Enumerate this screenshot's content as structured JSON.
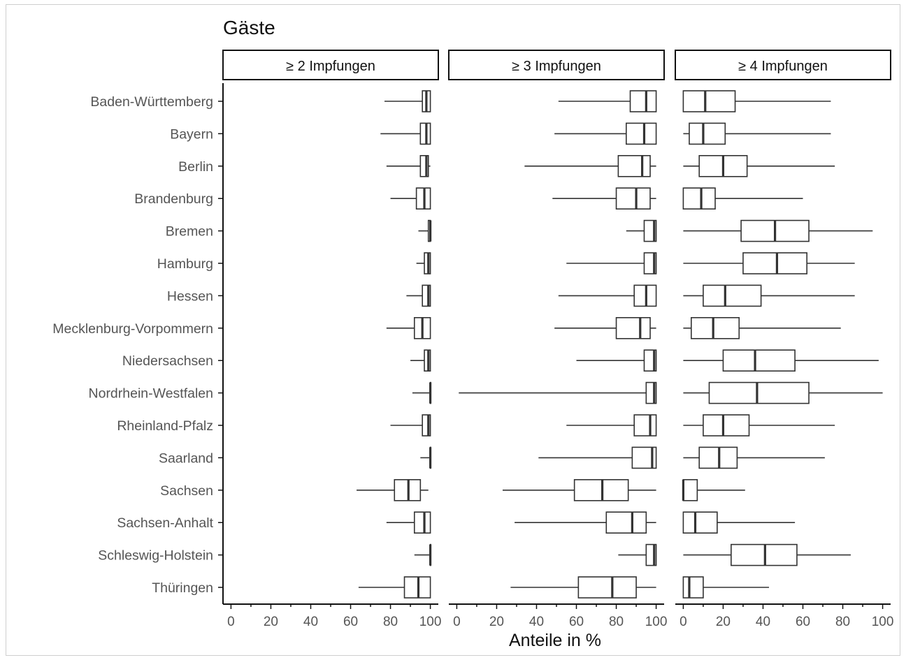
{
  "chart_data": {
    "type": "boxplot",
    "title": "Gäste",
    "xlabel": "Anteile in %",
    "xlim": [
      -4,
      104
    ],
    "xticks": [
      0,
      20,
      40,
      60,
      80,
      100
    ],
    "categories": [
      "Baden-Württemberg",
      "Bayern",
      "Berlin",
      "Brandenburg",
      "Bremen",
      "Hamburg",
      "Hessen",
      "Mecklenburg-Vorpommern",
      "Niedersachsen",
      "Nordrhein-Westfalen",
      "Rheinland-Pfalz",
      "Saarland",
      "Sachsen",
      "Sachsen-Anhalt",
      "Schleswig-Holstein",
      "Thüringen"
    ],
    "panels": [
      {
        "label": "≥ 2 Impfungen",
        "boxes": [
          {
            "min": 77,
            "q1": 96,
            "median": 98,
            "q3": 100,
            "max": 100
          },
          {
            "min": 75,
            "q1": 95,
            "median": 98,
            "q3": 100,
            "max": 100
          },
          {
            "min": 78,
            "q1": 95,
            "median": 98,
            "q3": 99,
            "max": 100
          },
          {
            "min": 80,
            "q1": 93,
            "median": 97,
            "q3": 100,
            "max": 100
          },
          {
            "min": 94,
            "q1": 99,
            "median": 100,
            "q3": 100,
            "max": 100
          },
          {
            "min": 93,
            "q1": 97,
            "median": 99,
            "q3": 100,
            "max": 100
          },
          {
            "min": 88,
            "q1": 96,
            "median": 99,
            "q3": 100,
            "max": 100
          },
          {
            "min": 78,
            "q1": 92,
            "median": 96,
            "q3": 100,
            "max": 100
          },
          {
            "min": 90,
            "q1": 97,
            "median": 99,
            "q3": 100,
            "max": 100
          },
          {
            "min": 91,
            "q1": 100,
            "median": 100,
            "q3": 100,
            "max": 100
          },
          {
            "min": 80,
            "q1": 96,
            "median": 99,
            "q3": 100,
            "max": 100
          },
          {
            "min": 95,
            "q1": 100,
            "median": 100,
            "q3": 100,
            "max": 100
          },
          {
            "min": 63,
            "q1": 82,
            "median": 89,
            "q3": 95,
            "max": 99
          },
          {
            "min": 78,
            "q1": 92,
            "median": 97,
            "q3": 100,
            "max": 100
          },
          {
            "min": 92,
            "q1": 100,
            "median": 100,
            "q3": 100,
            "max": 100
          },
          {
            "min": 64,
            "q1": 87,
            "median": 94,
            "q3": 100,
            "max": 100
          }
        ]
      },
      {
        "label": "≥ 3 Impfungen",
        "boxes": [
          {
            "min": 51,
            "q1": 87,
            "median": 95,
            "q3": 100,
            "max": 100
          },
          {
            "min": 49,
            "q1": 85,
            "median": 94,
            "q3": 100,
            "max": 100
          },
          {
            "min": 34,
            "q1": 81,
            "median": 93,
            "q3": 97,
            "max": 100
          },
          {
            "min": 48,
            "q1": 80,
            "median": 90,
            "q3": 97,
            "max": 100
          },
          {
            "min": 85,
            "q1": 94,
            "median": 99,
            "q3": 100,
            "max": 100
          },
          {
            "min": 55,
            "q1": 94,
            "median": 99,
            "q3": 100,
            "max": 100
          },
          {
            "min": 51,
            "q1": 89,
            "median": 95,
            "q3": 100,
            "max": 100
          },
          {
            "min": 49,
            "q1": 80,
            "median": 92,
            "q3": 97,
            "max": 100
          },
          {
            "min": 60,
            "q1": 94,
            "median": 99,
            "q3": 100,
            "max": 100
          },
          {
            "min": 1,
            "q1": 95,
            "median": 99,
            "q3": 100,
            "max": 100
          },
          {
            "min": 55,
            "q1": 89,
            "median": 97,
            "q3": 100,
            "max": 100
          },
          {
            "min": 41,
            "q1": 88,
            "median": 98,
            "q3": 100,
            "max": 100
          },
          {
            "min": 23,
            "q1": 59,
            "median": 73,
            "q3": 86,
            "max": 100
          },
          {
            "min": 29,
            "q1": 75,
            "median": 88,
            "q3": 95,
            "max": 100
          },
          {
            "min": 81,
            "q1": 95,
            "median": 99,
            "q3": 100,
            "max": 100
          },
          {
            "min": 27,
            "q1": 61,
            "median": 78,
            "q3": 90,
            "max": 100
          }
        ]
      },
      {
        "label": "≥ 4 Impfungen",
        "boxes": [
          {
            "min": 0,
            "q1": 0,
            "median": 11,
            "q3": 26,
            "max": 74
          },
          {
            "min": 0,
            "q1": 3,
            "median": 10,
            "q3": 21,
            "max": 74
          },
          {
            "min": 0,
            "q1": 8,
            "median": 20,
            "q3": 32,
            "max": 76
          },
          {
            "min": 0,
            "q1": 0,
            "median": 9,
            "q3": 16,
            "max": 60
          },
          {
            "min": 0,
            "q1": 29,
            "median": 46,
            "q3": 63,
            "max": 95
          },
          {
            "min": 0,
            "q1": 30,
            "median": 47,
            "q3": 62,
            "max": 86
          },
          {
            "min": 0,
            "q1": 10,
            "median": 21,
            "q3": 39,
            "max": 86
          },
          {
            "min": 0,
            "q1": 4,
            "median": 15,
            "q3": 28,
            "max": 79
          },
          {
            "min": 0,
            "q1": 20,
            "median": 36,
            "q3": 56,
            "max": 98
          },
          {
            "min": 0,
            "q1": 13,
            "median": 37,
            "q3": 63,
            "max": 100
          },
          {
            "min": 0,
            "q1": 10,
            "median": 20,
            "q3": 33,
            "max": 76
          },
          {
            "min": 0,
            "q1": 8,
            "median": 18,
            "q3": 27,
            "max": 71
          },
          {
            "min": 0,
            "q1": 0,
            "median": 0,
            "q3": 7,
            "max": 31
          },
          {
            "min": 0,
            "q1": 0,
            "median": 6,
            "q3": 17,
            "max": 56
          },
          {
            "min": 0,
            "q1": 24,
            "median": 41,
            "q3": 57,
            "max": 84
          },
          {
            "min": 0,
            "q1": 0,
            "median": 3,
            "q3": 10,
            "max": 43
          }
        ]
      }
    ],
    "colors": {
      "box_fill": "#ffffff",
      "line": "#333333",
      "axis": "#111111",
      "label_text": "#555555"
    }
  }
}
